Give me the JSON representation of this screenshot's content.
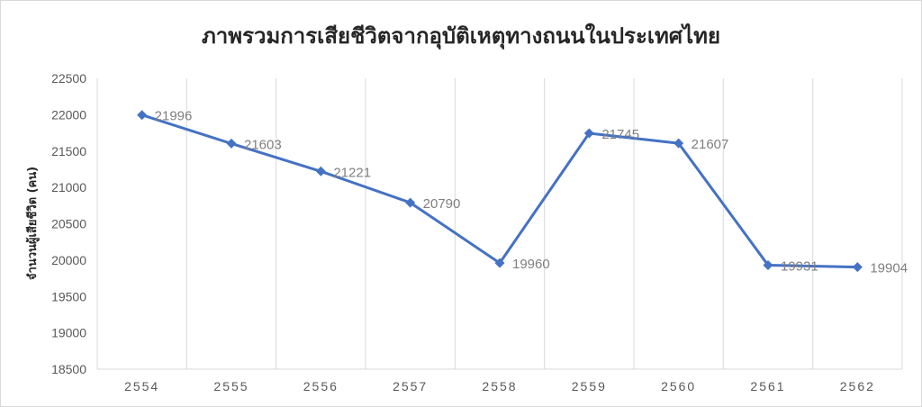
{
  "chart_data": {
    "type": "line",
    "title": "ภาพรวมการเสียชีวิตจากอุบัติเหตุทางถนนในประเทศไทย",
    "ylabel": "จำนวนผู้เสียชีวิต (คน)",
    "xlabel": "",
    "categories": [
      "2554",
      "2555",
      "2556",
      "2557",
      "2558",
      "2559",
      "2560",
      "2561",
      "2562"
    ],
    "series": [
      {
        "values": [
          21996,
          21603,
          21221,
          20790,
          19960,
          21745,
          21607,
          19931,
          19904
        ]
      }
    ],
    "ylim": [
      18500,
      22500
    ],
    "yticks": [
      18500,
      19000,
      19500,
      20000,
      20500,
      21000,
      21500,
      22000,
      22500
    ],
    "grid": "vertical",
    "legend": "none",
    "data_labels": true,
    "colors": {
      "series": "#4472c4",
      "grid": "#d9d9d9",
      "label": "#7f7f7f"
    }
  }
}
